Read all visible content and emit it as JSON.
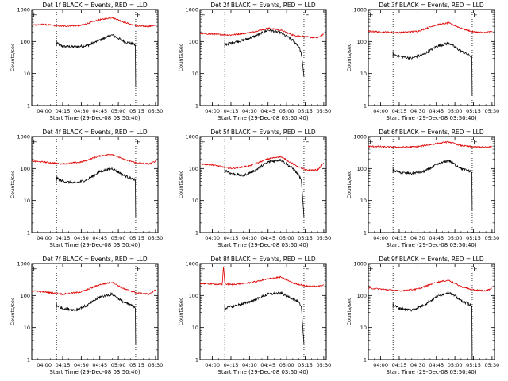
{
  "figure": {
    "xlabel": "Start Time (29-Dec-08 03:50:40)",
    "ylabel": "Counts/sec",
    "x_tick_labels": [
      "04:00",
      "04:15",
      "04:30",
      "04:45",
      "05:00",
      "05:15",
      "05:30"
    ],
    "y_tick_labels": [
      "1",
      "10",
      "100",
      "1000"
    ],
    "colors": {
      "events": "#000000",
      "lld": "#e00000",
      "axes": "#000000"
    }
  },
  "chart_data": [
    {
      "type": "line",
      "title": "Det 1f BLACK = Events, RED = LLD",
      "ylim": [
        1,
        1000
      ],
      "yscale": "log",
      "xlim": [
        "03:50",
        "05:32"
      ],
      "marker_labels": [
        "E",
        "E"
      ],
      "vlines": [
        "04:10",
        "05:14"
      ],
      "series": [
        {
          "name": "Events",
          "color": "#000000",
          "x": [
            "04:10",
            "04:15",
            "04:25",
            "04:35",
            "04:45",
            "04:55",
            "05:05",
            "05:13",
            "05:14",
            "05:14"
          ],
          "y": [
            90,
            70,
            68,
            75,
            110,
            160,
            100,
            80,
            70,
            4
          ]
        },
        {
          "name": "LLD",
          "color": "#e00000",
          "x": [
            "03:50",
            "04:00",
            "04:15",
            "04:30",
            "04:45",
            "04:55",
            "05:05",
            "05:15",
            "05:25",
            "05:30"
          ],
          "y": [
            330,
            340,
            300,
            320,
            480,
            560,
            400,
            300,
            300,
            320
          ]
        }
      ]
    },
    {
      "type": "line",
      "title": "Det 2f BLACK = Events, RED = LLD",
      "ylim": [
        1,
        1000
      ],
      "yscale": "log",
      "xlim": [
        "03:50",
        "05:32"
      ],
      "marker_labels": [
        "E",
        "E"
      ],
      "vlines": [
        "04:10",
        "05:14"
      ],
      "series": [
        {
          "name": "Events",
          "color": "#000000",
          "x": [
            "04:10",
            "04:15",
            "04:25",
            "04:35",
            "04:45",
            "04:55",
            "05:05",
            "05:10",
            "05:12",
            "05:14"
          ],
          "y": [
            80,
            90,
            110,
            150,
            230,
            190,
            110,
            70,
            40,
            8
          ]
        },
        {
          "name": "LLD",
          "color": "#e00000",
          "x": [
            "03:50",
            "04:00",
            "04:15",
            "04:30",
            "04:45",
            "04:55",
            "05:05",
            "05:15",
            "05:25",
            "05:30"
          ],
          "y": [
            180,
            170,
            160,
            190,
            260,
            230,
            160,
            140,
            130,
            170
          ]
        }
      ]
    },
    {
      "type": "line",
      "title": "Det 3f BLACK = Events, RED = LLD",
      "ylim": [
        1,
        1000
      ],
      "yscale": "log",
      "xlim": [
        "03:50",
        "05:32"
      ],
      "marker_labels": [
        "E",
        "E"
      ],
      "vlines": [
        "04:10",
        "05:14"
      ],
      "series": [
        {
          "name": "Events",
          "color": "#000000",
          "x": [
            "04:10",
            "04:15",
            "04:25",
            "04:35",
            "04:45",
            "04:55",
            "05:05",
            "05:13",
            "05:14",
            "05:14"
          ],
          "y": [
            40,
            35,
            30,
            40,
            70,
            90,
            50,
            35,
            30,
            2
          ]
        },
        {
          "name": "LLD",
          "color": "#e00000",
          "x": [
            "03:50",
            "04:00",
            "04:15",
            "04:30",
            "04:45",
            "04:55",
            "05:05",
            "05:15",
            "05:25",
            "05:30"
          ],
          "y": [
            210,
            200,
            190,
            210,
            330,
            380,
            260,
            200,
            190,
            210
          ]
        }
      ]
    },
    {
      "type": "line",
      "title": "Det 4f BLACK = Events, RED = LLD",
      "ylim": [
        1,
        1000
      ],
      "yscale": "log",
      "xlim": [
        "03:50",
        "05:32"
      ],
      "marker_labels": [
        "E",
        "E"
      ],
      "vlines": [
        "04:10",
        "05:14"
      ],
      "series": [
        {
          "name": "Events",
          "color": "#000000",
          "x": [
            "04:10",
            "04:15",
            "04:25",
            "04:35",
            "04:45",
            "04:55",
            "05:05",
            "05:13",
            "05:14",
            "05:14"
          ],
          "y": [
            50,
            40,
            35,
            45,
            80,
            100,
            60,
            45,
            40,
            3
          ]
        },
        {
          "name": "LLD",
          "color": "#e00000",
          "x": [
            "03:50",
            "04:00",
            "04:15",
            "04:30",
            "04:45",
            "04:55",
            "05:05",
            "05:15",
            "05:25",
            "05:30"
          ],
          "y": [
            170,
            160,
            140,
            160,
            250,
            280,
            190,
            150,
            140,
            170
          ]
        }
      ]
    },
    {
      "type": "line",
      "title": "Det 5f BLACK = Events, RED = LLD",
      "ylim": [
        1,
        1000
      ],
      "yscale": "log",
      "xlim": [
        "03:50",
        "05:32"
      ],
      "marker_labels": [
        "E",
        "E"
      ],
      "vlines": [
        "04:10",
        "05:14"
      ],
      "series": [
        {
          "name": "Events",
          "color": "#000000",
          "x": [
            "04:10",
            "04:15",
            "04:25",
            "04:35",
            "04:45",
            "04:55",
            "05:05",
            "05:10",
            "05:12",
            "05:14"
          ],
          "y": [
            90,
            70,
            60,
            90,
            160,
            190,
            100,
            60,
            40,
            3
          ]
        },
        {
          "name": "LLD",
          "color": "#e00000",
          "x": [
            "03:50",
            "04:00",
            "04:15",
            "04:30",
            "04:45",
            "04:55",
            "05:05",
            "05:15",
            "05:25",
            "05:30"
          ],
          "y": [
            140,
            130,
            100,
            120,
            200,
            240,
            140,
            90,
            90,
            150
          ]
        }
      ]
    },
    {
      "type": "line",
      "title": "Det 6f BLACK = Events, RED = LLD",
      "ylim": [
        1,
        1000
      ],
      "yscale": "log",
      "xlim": [
        "03:50",
        "05:32"
      ],
      "marker_labels": [
        "E",
        "E"
      ],
      "vlines": [
        "04:10",
        "05:14"
      ],
      "series": [
        {
          "name": "Events",
          "color": "#000000",
          "x": [
            "04:10",
            "04:15",
            "04:25",
            "04:35",
            "04:45",
            "04:55",
            "05:05",
            "05:13",
            "05:14",
            "05:14"
          ],
          "y": [
            90,
            75,
            70,
            80,
            130,
            180,
            100,
            80,
            70,
            5
          ]
        },
        {
          "name": "LLD",
          "color": "#e00000",
          "x": [
            "03:50",
            "04:00",
            "04:15",
            "04:30",
            "04:45",
            "04:55",
            "05:05",
            "05:15",
            "05:25",
            "05:30"
          ],
          "y": [
            490,
            480,
            460,
            480,
            600,
            680,
            520,
            470,
            460,
            480
          ]
        }
      ]
    },
    {
      "type": "line",
      "title": "Det 7f BLACK = Events, RED = LLD",
      "ylim": [
        1,
        1000
      ],
      "yscale": "log",
      "xlim": [
        "03:50",
        "05:32"
      ],
      "marker_labels": [
        "E",
        "E"
      ],
      "vlines": [
        "04:10",
        "05:14"
      ],
      "series": [
        {
          "name": "Events",
          "color": "#000000",
          "x": [
            "04:10",
            "04:15",
            "04:25",
            "04:35",
            "04:45",
            "04:55",
            "05:05",
            "05:13",
            "05:14",
            "05:14"
          ],
          "y": [
            50,
            40,
            35,
            50,
            90,
            110,
            60,
            45,
            40,
            3
          ]
        },
        {
          "name": "LLD",
          "color": "#e00000",
          "x": [
            "03:50",
            "04:00",
            "04:15",
            "04:30",
            "04:45",
            "04:55",
            "05:05",
            "05:15",
            "05:25",
            "05:30"
          ],
          "y": [
            140,
            130,
            110,
            130,
            220,
            260,
            160,
            120,
            110,
            150
          ]
        }
      ]
    },
    {
      "type": "line",
      "title": "Det 8f BLACK = Events, RED = LLD",
      "ylim": [
        1,
        1000
      ],
      "yscale": "log",
      "xlim": [
        "03:50",
        "05:32"
      ],
      "marker_labels": [
        "E",
        "E"
      ],
      "vlines": [
        "04:10",
        "05:14"
      ],
      "series": [
        {
          "name": "Events",
          "color": "#000000",
          "x": [
            "04:10",
            "04:15",
            "04:25",
            "04:35",
            "04:45",
            "04:55",
            "05:05",
            "05:10",
            "05:12",
            "05:14"
          ],
          "y": [
            40,
            45,
            55,
            75,
            110,
            120,
            80,
            60,
            40,
            3
          ]
        },
        {
          "name": "LLD",
          "color": "#e00000",
          "x": [
            "03:50",
            "04:00",
            "04:08",
            "04:09",
            "04:10",
            "04:15",
            "04:30",
            "04:45",
            "04:55",
            "05:05",
            "05:15",
            "05:25",
            "05:30"
          ],
          "y": [
            240,
            230,
            220,
            900,
            230,
            220,
            250,
            330,
            380,
            250,
            200,
            190,
            220
          ]
        }
      ]
    },
    {
      "type": "line",
      "title": "Det 9f BLACK = Events, RED = LLD",
      "ylim": [
        1,
        1000
      ],
      "yscale": "log",
      "xlim": [
        "03:50",
        "05:32"
      ],
      "marker_labels": [
        "E",
        "E"
      ],
      "vlines": [
        "04:10",
        "05:14"
      ],
      "series": [
        {
          "name": "Events",
          "color": "#000000",
          "x": [
            "04:10",
            "04:15",
            "04:25",
            "04:35",
            "04:45",
            "04:55",
            "05:05",
            "05:13",
            "05:14",
            "05:14"
          ],
          "y": [
            50,
            40,
            35,
            50,
            90,
            130,
            70,
            50,
            40,
            1
          ]
        },
        {
          "name": "LLD",
          "color": "#e00000",
          "x": [
            "03:50",
            "04:00",
            "04:15",
            "04:30",
            "04:45",
            "04:55",
            "05:05",
            "05:15",
            "05:25",
            "05:30"
          ],
          "y": [
            170,
            160,
            140,
            160,
            260,
            300,
            190,
            150,
            140,
            170
          ]
        }
      ]
    }
  ]
}
